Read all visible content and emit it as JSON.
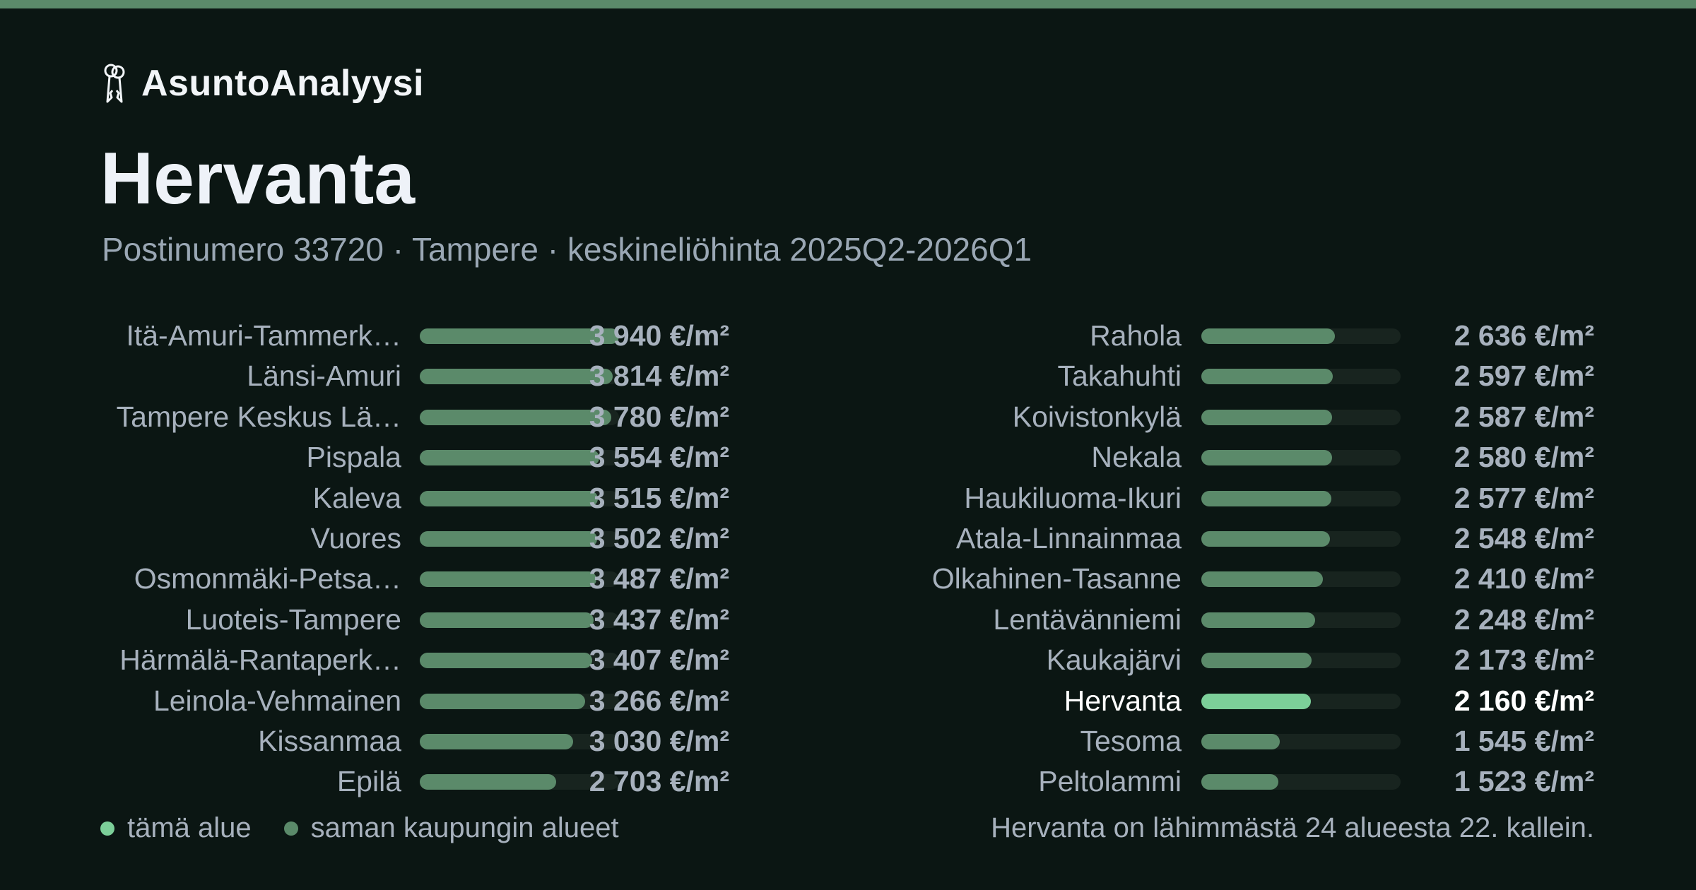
{
  "brand": {
    "name": "AsuntoAnalyysi",
    "icon": "keys-icon"
  },
  "colors": {
    "accent": "#5b8a6a",
    "highlight": "#7ccf99",
    "background": "#0b1613",
    "track": "#18241f"
  },
  "header": {
    "title": "Hervanta",
    "subtitle": "Postinumero 33720 · Tampere · keskineliöhinta 2025Q2-2026Q1"
  },
  "chart_data": {
    "type": "bar",
    "orientation": "horizontal",
    "unit": "€/m²",
    "xlim": [
      0,
      3940
    ],
    "highlight": "Hervanta",
    "categories": [
      "Itä-Amuri-Tammerk…",
      "Länsi-Amuri",
      "Tampere Keskus Lä…",
      "Pispala",
      "Kaleva",
      "Vuores",
      "Osmonmäki-Petsa…",
      "Luoteis-Tampere",
      "Härmälä-Rantaperk…",
      "Leinola-Vehmainen",
      "Kissanmaa",
      "Epilä",
      "Rahola",
      "Takahuhti",
      "Koivistonkylä",
      "Nekala",
      "Haukiluoma-Ikuri",
      "Atala-Linnainmaa",
      "Olkahinen-Tasanne",
      "Lentävänniemi",
      "Kaukajärvi",
      "Hervanta",
      "Tesoma",
      "Peltolammi"
    ],
    "values": [
      3940,
      3814,
      3780,
      3554,
      3515,
      3502,
      3487,
      3437,
      3407,
      3266,
      3030,
      2703,
      2636,
      2597,
      2587,
      2580,
      2577,
      2548,
      2410,
      2248,
      2173,
      2160,
      1545,
      1523
    ],
    "value_labels": [
      "3 940 €/m²",
      "3 814 €/m²",
      "3 780 €/m²",
      "3 554 €/m²",
      "3 515 €/m²",
      "3 502 €/m²",
      "3 487 €/m²",
      "3 437 €/m²",
      "3 407 €/m²",
      "3 266 €/m²",
      "3 030 €/m²",
      "2 703 €/m²",
      "2 636 €/m²",
      "2 597 €/m²",
      "2 587 €/m²",
      "2 580 €/m²",
      "2 577 €/m²",
      "2 548 €/m²",
      "2 410 €/m²",
      "2 248 €/m²",
      "2 173 €/m²",
      "2 160 €/m²",
      "1 545 €/m²",
      "1 523 €/m²"
    ]
  },
  "legend": {
    "this_area": "tämä alue",
    "same_city": "saman kaupungin alueet"
  },
  "footnote": "Hervanta on lähimmästä 24 alueesta 22. kallein."
}
